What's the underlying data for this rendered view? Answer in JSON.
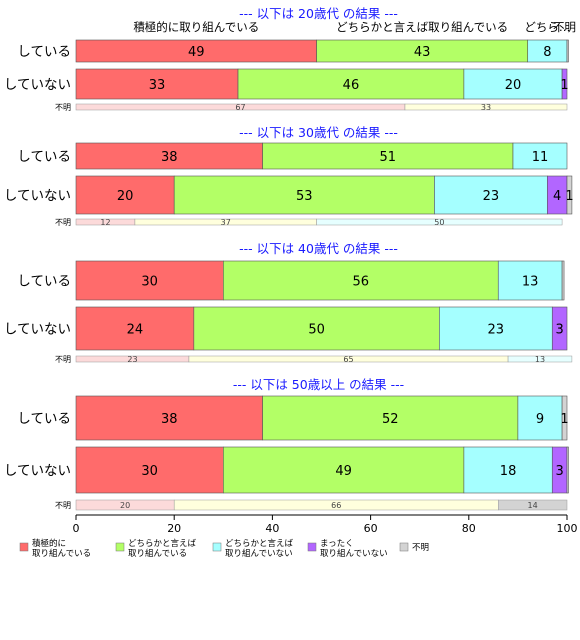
{
  "chart_data": {
    "type": "bar",
    "orientation": "horizontal",
    "stacked": true,
    "xlim": [
      0,
      100
    ],
    "x_ticks": [
      "0",
      "20",
      "40",
      "60",
      "80",
      "100"
    ],
    "top_labels": [
      {
        "text": "積極的に取り組んでいる",
        "x": 24.5
      },
      {
        "text": "どちらかと言えば取り組んでいる",
        "x": 70.5
      },
      {
        "text": "どちら…",
        "x": 96
      },
      {
        "text": "不明",
        "x": 99.5
      }
    ],
    "legend": [
      {
        "name": "積極的に\n取り組んでいる",
        "color": "#FF6B6B"
      },
      {
        "name": "どちらかと言えば\n取り組んでいる",
        "color": "#B3FF66"
      },
      {
        "name": "どちらかと言えば\n取り組んでいない",
        "color": "#A5FFFF"
      },
      {
        "name": "まったく\n取り組んでいない",
        "color": "#B266FF"
      },
      {
        "name": "不明",
        "color": "#D3D3D3"
      }
    ],
    "panels": [
      {
        "title": "--- 以下は 20歳代 の結果 ---",
        "rows": [
          {
            "label": "している",
            "values": [
              49,
              43,
              8,
              0,
              0.3
            ],
            "labels": [
              "49",
              "43",
              "8",
              "",
              ""
            ]
          },
          {
            "label": "していない",
            "values": [
              33,
              46,
              20,
              1,
              0
            ],
            "labels": [
              "33",
              "46",
              "20",
              "1",
              ""
            ]
          }
        ],
        "unknown": {
          "label": "不明",
          "values": [
            67,
            33,
            0,
            0,
            0
          ],
          "labels": [
            "67",
            "33",
            "",
            "",
            ""
          ]
        }
      },
      {
        "title": "--- 以下は 30歳代 の結果 ---",
        "rows": [
          {
            "label": "している",
            "values": [
              38,
              51,
              11,
              0,
              0
            ],
            "labels": [
              "38",
              "51",
              "11",
              "",
              ""
            ]
          },
          {
            "label": "していない",
            "values": [
              20,
              53,
              23,
              4,
              1
            ],
            "labels": [
              "20",
              "53",
              "23",
              "4",
              "1"
            ]
          }
        ],
        "unknown": {
          "label": "不明",
          "values": [
            12,
            37,
            50,
            0,
            0
          ],
          "labels": [
            "12",
            "37",
            "50",
            "",
            ""
          ]
        }
      },
      {
        "title": "--- 以下は 40歳代 の結果 ---",
        "rows": [
          {
            "label": "している",
            "values": [
              30,
              56,
              13,
              0,
              0.4
            ],
            "labels": [
              "30",
              "56",
              "13",
              "",
              ""
            ]
          },
          {
            "label": "していない",
            "values": [
              24,
              50,
              23,
              3,
              0
            ],
            "labels": [
              "24",
              "50",
              "23",
              "3",
              ""
            ]
          }
        ],
        "unknown": {
          "label": "不明",
          "values": [
            23,
            65,
            13,
            0,
            0
          ],
          "labels": [
            "23",
            "65",
            "13",
            "",
            ""
          ]
        }
      },
      {
        "title": "--- 以下は 50歳以上 の結果 ---",
        "rows": [
          {
            "label": "している",
            "values": [
              38,
              52,
              9,
              0,
              1
            ],
            "labels": [
              "38",
              "52",
              "9",
              "",
              "1"
            ]
          },
          {
            "label": "していない",
            "values": [
              30,
              49,
              18,
              3,
              0.3
            ],
            "labels": [
              "30",
              "49",
              "18",
              "3",
              ""
            ]
          }
        ],
        "unknown": {
          "label": "不明",
          "values": [
            20,
            66,
            0,
            0,
            14
          ],
          "labels": [
            "20",
            "66",
            "",
            "",
            "14"
          ]
        }
      }
    ]
  },
  "colors": {
    "title": "#1a1aff",
    "series": [
      "#FF6B6B",
      "#B3FF66",
      "#A5FFFF",
      "#B266FF",
      "#D3D3D3"
    ],
    "series_light": [
      "#FCDADA",
      "#FFFFDD",
      "#E6FFFF",
      "#EAD6FF",
      "#D3D3D3"
    ]
  }
}
